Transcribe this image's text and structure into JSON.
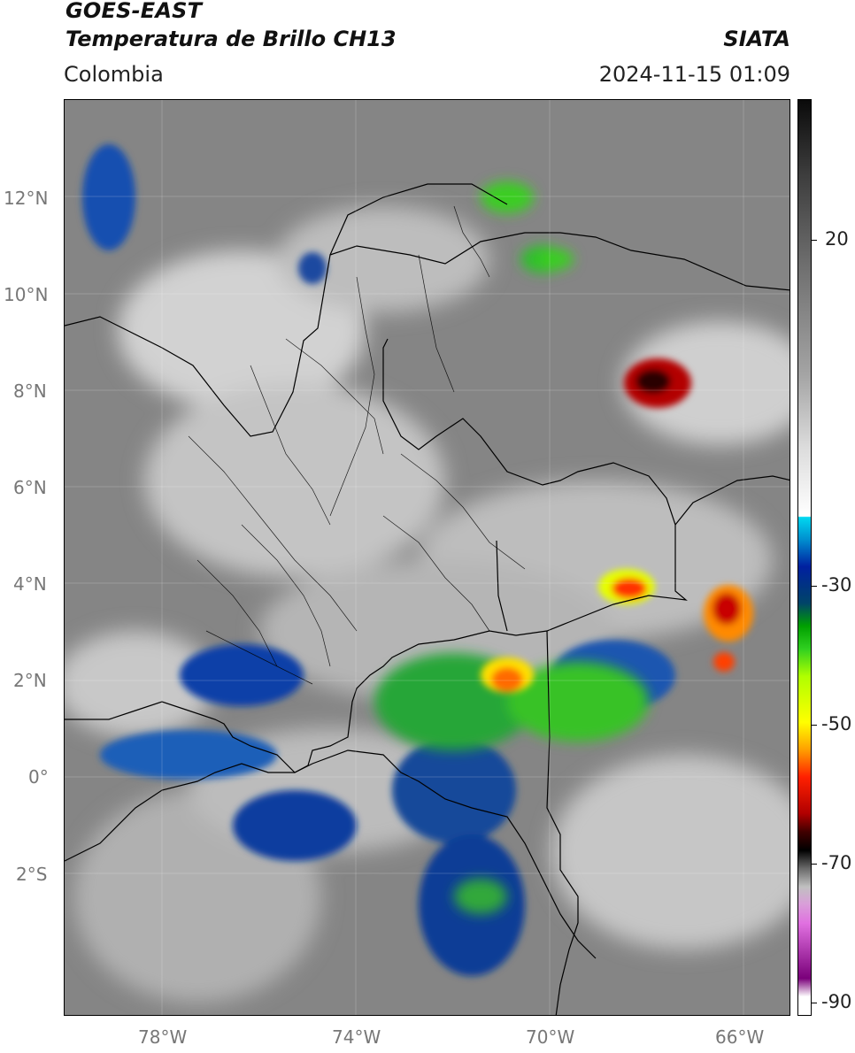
{
  "header": {
    "satellite": "GOES-EAST",
    "product": "Temperatura de Brillo CH13",
    "region": "Colombia",
    "brand": "SIATA",
    "datetime": "2024-11-15 01:09"
  },
  "map": {
    "lat_labels": [
      "12°N",
      "10°N",
      "8°N",
      "6°N",
      "4°N",
      "2°N",
      "0°",
      "2°S"
    ],
    "lon_labels": [
      "78°W",
      "74°W",
      "70°W",
      "66°W"
    ]
  },
  "colorbar": {
    "labels": [
      "20",
      "-30",
      "-50",
      "-70",
      "-90"
    ],
    "colors": {
      "cold_cloud": "#ff2000",
      "deep_convection": "#000000",
      "moderate": "#30d020",
      "cool": "#0020a0",
      "clear": "#8a8a8a"
    }
  }
}
